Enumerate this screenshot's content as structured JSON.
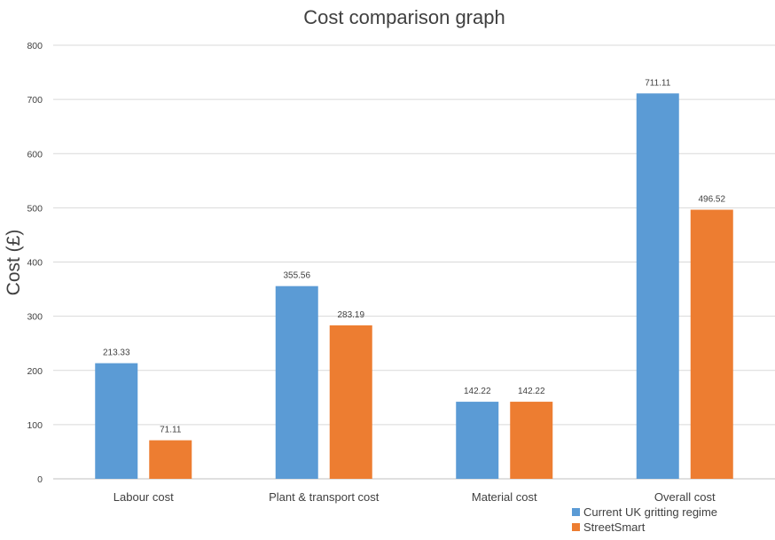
{
  "chart_data": {
    "type": "bar",
    "title": "Cost comparison graph",
    "xlabel": "",
    "ylabel": "Cost (£)",
    "ylim": [
      0,
      800
    ],
    "yticks": [
      0,
      100,
      200,
      300,
      400,
      500,
      600,
      700,
      800
    ],
    "categories": [
      "Labour cost",
      "Plant & transport cost",
      "Material cost",
      "Overall cost"
    ],
    "series": [
      {
        "name": "Current UK gritting regime",
        "color": "#5B9BD5",
        "values": [
          213.33,
          355.56,
          142.22,
          711.11
        ]
      },
      {
        "name": "StreetSmart",
        "color": "#ED7D31",
        "values": [
          71.11,
          283.19,
          142.22,
          496.52
        ]
      }
    ],
    "data_labels": [
      [
        "213.33",
        "355.56",
        "142.22",
        "711.11"
      ],
      [
        "71.11",
        "283.19",
        "142.22",
        "496.52"
      ]
    ],
    "grid": true,
    "legend_position": "bottom-right"
  }
}
